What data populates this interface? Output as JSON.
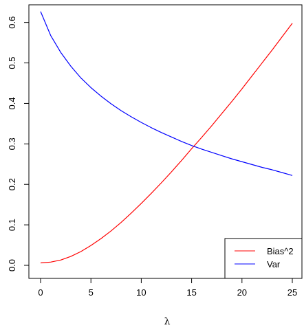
{
  "chart_data": {
    "type": "line",
    "title": "",
    "xlabel": "λ",
    "ylabel": "",
    "xlim": [
      0,
      25
    ],
    "ylim": [
      0,
      0.63
    ],
    "grid": false,
    "legend_position": "bottom-right",
    "x_ticks": [
      0,
      5,
      10,
      15,
      20,
      25
    ],
    "x_tick_labels": [
      "0",
      "5",
      "10",
      "15",
      "20",
      "25"
    ],
    "y_ticks": [
      0.0,
      0.1,
      0.2,
      0.3,
      0.4,
      0.5,
      0.6
    ],
    "y_tick_labels": [
      "0.0",
      "0.1",
      "0.2",
      "0.3",
      "0.4",
      "0.5",
      "0.6"
    ],
    "x": [
      0,
      1,
      2,
      3,
      4,
      5,
      6,
      7,
      8,
      9,
      10,
      11,
      12,
      13,
      14,
      15,
      16,
      17,
      18,
      19,
      20,
      21,
      22,
      23,
      24,
      25
    ],
    "series": [
      {
        "name": "Bias^2",
        "color": "#ff0000",
        "values": [
          0.006,
          0.008,
          0.013,
          0.022,
          0.034,
          0.049,
          0.066,
          0.085,
          0.106,
          0.129,
          0.153,
          0.178,
          0.204,
          0.231,
          0.259,
          0.288,
          0.316,
          0.345,
          0.375,
          0.405,
          0.436,
          0.468,
          0.5,
          0.532,
          0.565,
          0.598
        ]
      },
      {
        "name": "Var",
        "color": "#0000ff",
        "values": [
          0.627,
          0.568,
          0.526,
          0.492,
          0.463,
          0.439,
          0.418,
          0.399,
          0.382,
          0.367,
          0.353,
          0.34,
          0.328,
          0.317,
          0.306,
          0.296,
          0.287,
          0.279,
          0.271,
          0.263,
          0.256,
          0.249,
          0.242,
          0.236,
          0.229,
          0.222
        ]
      }
    ]
  }
}
